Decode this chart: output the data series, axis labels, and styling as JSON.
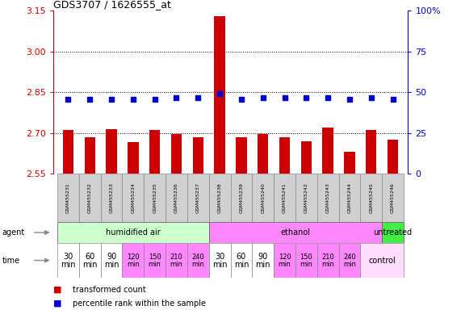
{
  "title": "GDS3707 / 1626555_at",
  "samples": [
    "GSM455231",
    "GSM455232",
    "GSM455233",
    "GSM455234",
    "GSM455235",
    "GSM455236",
    "GSM455237",
    "GSM455238",
    "GSM455239",
    "GSM455240",
    "GSM455241",
    "GSM455242",
    "GSM455243",
    "GSM455244",
    "GSM455245",
    "GSM455246"
  ],
  "bar_values": [
    2.71,
    2.685,
    2.715,
    2.665,
    2.71,
    2.695,
    2.685,
    3.13,
    2.685,
    2.695,
    2.685,
    2.668,
    2.72,
    2.63,
    2.71,
    2.675
  ],
  "percentile_values": [
    2.825,
    2.825,
    2.825,
    2.825,
    2.825,
    2.83,
    2.83,
    2.845,
    2.825,
    2.83,
    2.83,
    2.83,
    2.83,
    2.825,
    2.83,
    2.825
  ],
  "bar_color": "#cc0000",
  "percentile_color": "#0000cc",
  "ylim_left": [
    2.55,
    3.15
  ],
  "ylim_right": [
    0,
    100
  ],
  "yticks_left": [
    2.55,
    2.7,
    2.85,
    3.0,
    3.15
  ],
  "yticks_right": [
    0,
    25,
    50,
    75,
    100
  ],
  "grid_values": [
    3.0,
    2.85,
    2.7
  ],
  "agent_groups": [
    {
      "label": "humidified air",
      "start": 0,
      "end": 7,
      "color": "#ccffcc"
    },
    {
      "label": "ethanol",
      "start": 7,
      "end": 15,
      "color": "#ff88ff"
    },
    {
      "label": "untreated",
      "start": 15,
      "end": 16,
      "color": "#44ee44"
    }
  ],
  "time_cells": [
    {
      "label": "30\nmin",
      "col": 0,
      "span": 1,
      "color": "#ffffff",
      "fontsize": 7
    },
    {
      "label": "60\nmin",
      "col": 1,
      "span": 1,
      "color": "#ffffff",
      "fontsize": 7
    },
    {
      "label": "90\nmin",
      "col": 2,
      "span": 1,
      "color": "#ffffff",
      "fontsize": 7
    },
    {
      "label": "120\nmin",
      "col": 3,
      "span": 1,
      "color": "#ff88ff",
      "fontsize": 6
    },
    {
      "label": "150\nmin",
      "col": 4,
      "span": 1,
      "color": "#ff88ff",
      "fontsize": 6
    },
    {
      "label": "210\nmin",
      "col": 5,
      "span": 1,
      "color": "#ff88ff",
      "fontsize": 6
    },
    {
      "label": "240\nmin",
      "col": 6,
      "span": 1,
      "color": "#ff88ff",
      "fontsize": 6
    },
    {
      "label": "30\nmin",
      "col": 7,
      "span": 1,
      "color": "#ffffff",
      "fontsize": 7
    },
    {
      "label": "60\nmin",
      "col": 8,
      "span": 1,
      "color": "#ffffff",
      "fontsize": 7
    },
    {
      "label": "90\nmin",
      "col": 9,
      "span": 1,
      "color": "#ffffff",
      "fontsize": 7
    },
    {
      "label": "120\nmin",
      "col": 10,
      "span": 1,
      "color": "#ff88ff",
      "fontsize": 6
    },
    {
      "label": "150\nmin",
      "col": 11,
      "span": 1,
      "color": "#ff88ff",
      "fontsize": 6
    },
    {
      "label": "210\nmin",
      "col": 12,
      "span": 1,
      "color": "#ff88ff",
      "fontsize": 6
    },
    {
      "label": "240\nmin",
      "col": 13,
      "span": 1,
      "color": "#ff88ff",
      "fontsize": 6
    },
    {
      "label": "control",
      "col": 14,
      "span": 2,
      "color": "#ffddff",
      "fontsize": 7
    }
  ],
  "legend_items": [
    {
      "color": "#cc0000",
      "label": "transformed count"
    },
    {
      "color": "#0000cc",
      "label": "percentile rank within the sample"
    }
  ],
  "bar_width": 0.5,
  "background_color": "#ffffff",
  "plot_bg_color": "#ffffff",
  "left_axis_color": "#cc0000",
  "right_axis_color": "#0000cc",
  "sample_bg_color": "#d0d0d0",
  "sample_border_color": "#888888"
}
